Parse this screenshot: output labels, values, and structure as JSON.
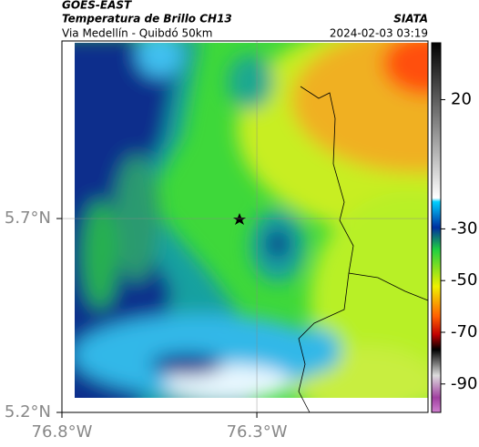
{
  "header": {
    "title": "GOES-EAST",
    "subtitle": "Temperatura de Brillo CH13",
    "source": "SIATA",
    "location": "Via Medellín - Quibdó 50km",
    "timestamp": "2024-02-03 03:19"
  },
  "map": {
    "latlim": [
      5.2,
      6.158
    ],
    "lonlim": [
      -76.8,
      -75.861
    ],
    "lat_ticks": [
      {
        "value": 5.7,
        "label": "5.7°N"
      },
      {
        "value": 5.2,
        "label": "5.2°N"
      }
    ],
    "lon_ticks": [
      {
        "value": -76.8,
        "label": "76.8°W"
      },
      {
        "value": -76.3,
        "label": "76.3°W"
      }
    ],
    "grid": true
  },
  "colorbar": {
    "lim": [
      42,
      -101
    ],
    "ticks": [
      20,
      -30,
      -50,
      -70,
      -90
    ]
  }
}
